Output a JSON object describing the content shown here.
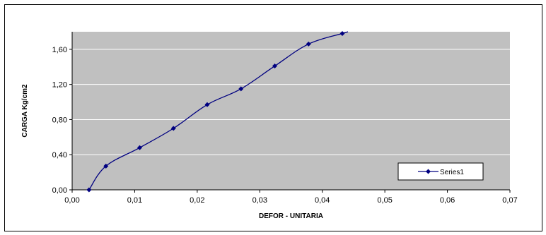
{
  "chart_data": {
    "type": "line",
    "xlabel": "DEFOR - UNITARIA",
    "ylabel": "CARGA Kg/cm2",
    "xlim": [
      0,
      0.07
    ],
    "ylim": [
      0,
      1.8
    ],
    "x_ticks": [
      "0,00",
      "0,01",
      "0,02",
      "0,03",
      "0,04",
      "0,05",
      "0,06",
      "0,07"
    ],
    "y_ticks": [
      "0,00",
      "0,40",
      "0,80",
      "1,20",
      "1,60"
    ],
    "grid": "horizontal",
    "legend_position": "bottom-right",
    "colors": {
      "plot_background": "#c0c0c0",
      "series": "#000080",
      "grid": "#ffffff"
    },
    "series": [
      {
        "name": "Series1",
        "x": [
          0.0027,
          0.0054,
          0.0108,
          0.0162,
          0.0216,
          0.027,
          0.0324,
          0.0378,
          0.0432
        ],
        "y": [
          0.0,
          0.27,
          0.48,
          0.7,
          0.97,
          1.15,
          1.41,
          1.66,
          1.78
        ]
      }
    ]
  }
}
